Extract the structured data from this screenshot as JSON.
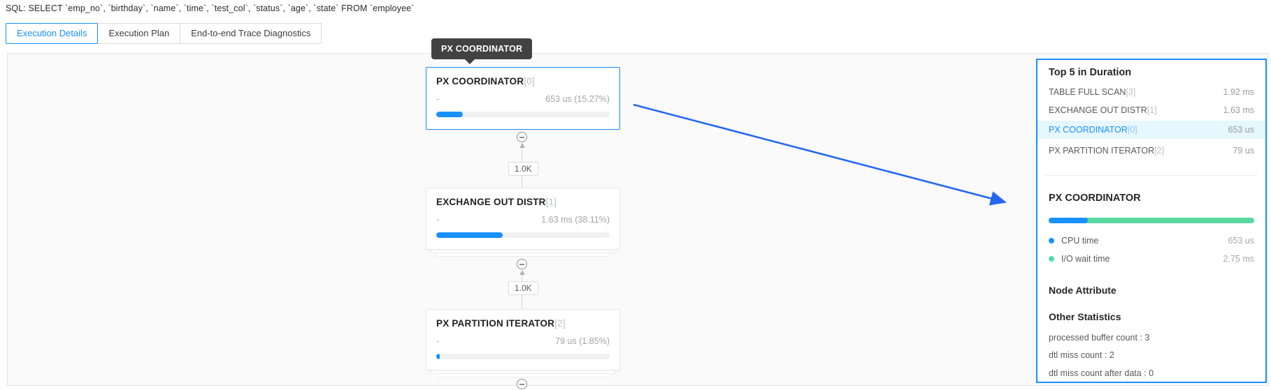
{
  "colors": {
    "accent_blue": "#1890ff",
    "io_green": "#5bd8a2",
    "highlight_bg": "#e6f7ff",
    "tooltip_bg": "#424242",
    "annotation_arrow_blue": "#2468f2",
    "canvas_bg": "#fafafa"
  },
  "header": {
    "sql_text": "SQL: SELECT `emp_no`, `birthday`, `name`, `time`, `test_col`, `status`, `age`, `state` FROM `employee`"
  },
  "tabs": [
    {
      "label": "Execution Details",
      "active": true
    },
    {
      "label": "Execution Plan",
      "active": false
    },
    {
      "label": "End-to-end Trace Diagnostics",
      "active": false
    }
  ],
  "tooltip": {
    "text": "PX COORDINATOR"
  },
  "plan_nodes": [
    {
      "name": "PX COORDINATOR",
      "index": "[0]",
      "left_value": "-",
      "duration": "653 us (15.27%)",
      "percent": 15.27,
      "selected": true
    },
    {
      "name": "EXCHANGE OUT DISTR",
      "index": "[1]",
      "left_value": "-",
      "duration": "1.63 ms (38.11%)",
      "percent": 38.11,
      "selected": false
    },
    {
      "name": "PX PARTITION ITERATOR",
      "index": "[2]",
      "left_value": "-",
      "duration": "79 us (1.85%)",
      "percent": 1.85,
      "selected": false
    }
  ],
  "edges": [
    {
      "rows_label": "1.0K"
    },
    {
      "rows_label": "1.0K"
    }
  ],
  "detail_panel": {
    "top5": {
      "title": "Top 5 in Duration",
      "items": [
        {
          "name": "TABLE FULL SCAN",
          "index": "[3]",
          "value": "1.92 ms",
          "highlighted": false
        },
        {
          "name": "EXCHANGE OUT DISTR",
          "index": "[1]",
          "value": "1.63 ms",
          "highlighted": false
        },
        {
          "name": "PX COORDINATOR",
          "index": "[0]",
          "value": "653 us",
          "highlighted": true
        },
        {
          "name": "PX PARTITION ITERATOR",
          "index": "[2]",
          "value": "79 us",
          "highlighted": false
        }
      ]
    },
    "node_detail": {
      "title": "PX COORDINATOR",
      "cpu_percent": 19.2,
      "metrics": [
        {
          "label": "CPU time",
          "value": "653 us",
          "dot_color": "#1890ff"
        },
        {
          "label": "I/O wait time",
          "value": "2.75 ms",
          "dot_color": "#5bd8a2"
        }
      ]
    },
    "node_attribute_title": "Node Attribute",
    "other_statistics": {
      "title": "Other Statistics",
      "items": [
        "processed buffer count : 3",
        "dtl miss count : 2",
        "dtl miss count after data : 0"
      ]
    }
  }
}
